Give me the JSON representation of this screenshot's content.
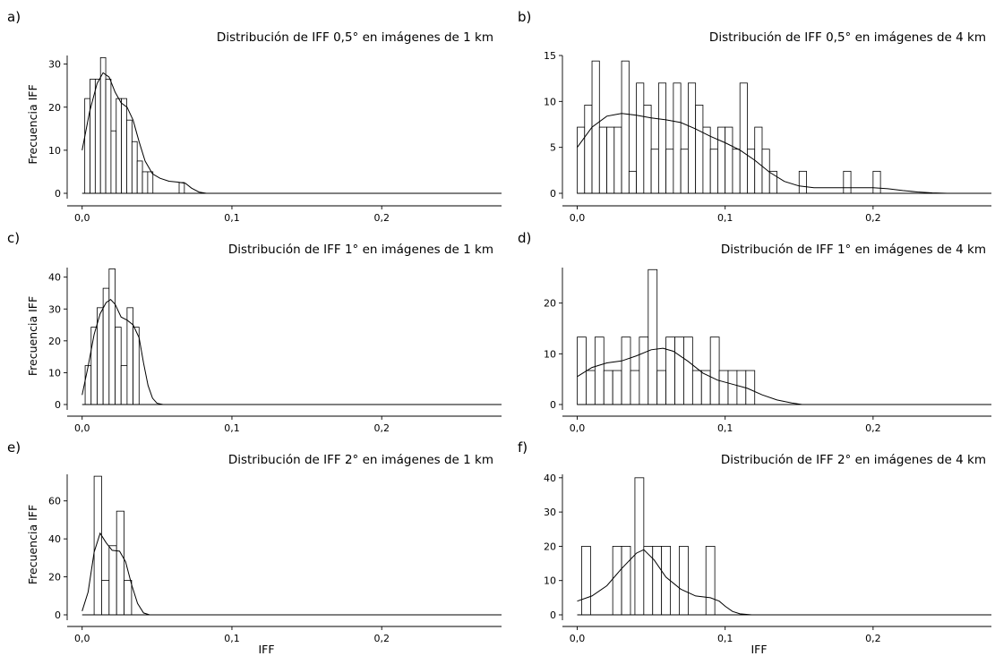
{
  "chart_data": [
    {
      "type": "bar",
      "panel": "a)",
      "title": "Distribución de IFF 0,5° en imágenes de 1 km",
      "xlabel": "",
      "ylabel": "Frecuencia IFF",
      "xlim": [
        -0.01,
        0.28
      ],
      "ylim": [
        0,
        32
      ],
      "xticks": [
        {
          "v": 0.0,
          "label": "0,0"
        },
        {
          "v": 0.1,
          "label": "0,1"
        },
        {
          "v": 0.2,
          "label": "0,2"
        }
      ],
      "yticks": [
        {
          "v": 0,
          "label": "0"
        },
        {
          "v": 10,
          "label": "10"
        },
        {
          "v": 20,
          "label": "20"
        },
        {
          "v": 30,
          "label": "30"
        }
      ],
      "bin_width": 0.0035,
      "bins": [
        {
          "x": 0.0035,
          "y": 22
        },
        {
          "x": 0.007,
          "y": 26.5
        },
        {
          "x": 0.0105,
          "y": 26.5
        },
        {
          "x": 0.014,
          "y": 31.5
        },
        {
          "x": 0.0175,
          "y": 26.5
        },
        {
          "x": 0.021,
          "y": 14.5
        },
        {
          "x": 0.0245,
          "y": 22
        },
        {
          "x": 0.028,
          "y": 22
        },
        {
          "x": 0.0315,
          "y": 17
        },
        {
          "x": 0.035,
          "y": 12
        },
        {
          "x": 0.0385,
          "y": 7.5
        },
        {
          "x": 0.042,
          "y": 5
        },
        {
          "x": 0.0455,
          "y": 5
        },
        {
          "x": 0.0665,
          "y": 2.5
        }
      ],
      "density": [
        [
          0.0,
          10
        ],
        [
          0.005,
          19
        ],
        [
          0.01,
          25.5
        ],
        [
          0.014,
          28
        ],
        [
          0.018,
          27
        ],
        [
          0.022,
          23.5
        ],
        [
          0.026,
          21
        ],
        [
          0.03,
          20
        ],
        [
          0.034,
          17
        ],
        [
          0.038,
          12
        ],
        [
          0.042,
          7.5
        ],
        [
          0.047,
          4.5
        ],
        [
          0.052,
          3.5
        ],
        [
          0.058,
          2.8
        ],
        [
          0.064,
          2.6
        ],
        [
          0.069,
          2.3
        ],
        [
          0.073,
          1.2
        ],
        [
          0.078,
          0.3
        ],
        [
          0.083,
          0
        ],
        [
          0.28,
          0
        ]
      ]
    },
    {
      "type": "bar",
      "panel": "b)",
      "title": "Distribución de IFF  0,5° en imágenes de 4 km",
      "xlabel": "",
      "ylabel": "",
      "xlim": [
        -0.01,
        0.28
      ],
      "ylim": [
        0,
        15
      ],
      "xticks": [
        {
          "v": 0.0,
          "label": "0,0"
        },
        {
          "v": 0.1,
          "label": "0,1"
        },
        {
          "v": 0.2,
          "label": "0,2"
        }
      ],
      "yticks": [
        {
          "v": 0,
          "label": "0"
        },
        {
          "v": 5,
          "label": "5"
        },
        {
          "v": 10,
          "label": "10"
        },
        {
          "v": 15,
          "label": "15"
        }
      ],
      "bin_width": 0.005,
      "bins": [
        {
          "x": 0.0025,
          "y": 7.2
        },
        {
          "x": 0.0075,
          "y": 9.6
        },
        {
          "x": 0.0125,
          "y": 14.4
        },
        {
          "x": 0.0175,
          "y": 7.2
        },
        {
          "x": 0.0225,
          "y": 7.2
        },
        {
          "x": 0.0275,
          "y": 7.2
        },
        {
          "x": 0.0325,
          "y": 14.4
        },
        {
          "x": 0.0375,
          "y": 2.4
        },
        {
          "x": 0.0425,
          "y": 12
        },
        {
          "x": 0.0475,
          "y": 9.6
        },
        {
          "x": 0.0525,
          "y": 4.8
        },
        {
          "x": 0.0575,
          "y": 12
        },
        {
          "x": 0.0625,
          "y": 4.8
        },
        {
          "x": 0.0675,
          "y": 12
        },
        {
          "x": 0.0725,
          "y": 4.8
        },
        {
          "x": 0.0775,
          "y": 12
        },
        {
          "x": 0.0825,
          "y": 9.6
        },
        {
          "x": 0.0875,
          "y": 7.2
        },
        {
          "x": 0.0925,
          "y": 4.8
        },
        {
          "x": 0.0975,
          "y": 7.2
        },
        {
          "x": 0.1025,
          "y": 7.2
        },
        {
          "x": 0.1075,
          "y": 4.8
        },
        {
          "x": 0.1125,
          "y": 12
        },
        {
          "x": 0.1175,
          "y": 4.8
        },
        {
          "x": 0.1225,
          "y": 7.2
        },
        {
          "x": 0.1275,
          "y": 4.8
        },
        {
          "x": 0.1325,
          "y": 2.4
        },
        {
          "x": 0.1525,
          "y": 2.4
        },
        {
          "x": 0.1825,
          "y": 2.4
        },
        {
          "x": 0.2025,
          "y": 2.4
        }
      ],
      "density": [
        [
          0.0,
          5
        ],
        [
          0.01,
          7.2
        ],
        [
          0.02,
          8.4
        ],
        [
          0.03,
          8.7
        ],
        [
          0.04,
          8.5
        ],
        [
          0.05,
          8.2
        ],
        [
          0.06,
          8
        ],
        [
          0.07,
          7.7
        ],
        [
          0.08,
          7
        ],
        [
          0.09,
          6.2
        ],
        [
          0.1,
          5.5
        ],
        [
          0.11,
          4.7
        ],
        [
          0.12,
          3.6
        ],
        [
          0.13,
          2.3
        ],
        [
          0.14,
          1.3
        ],
        [
          0.15,
          0.8
        ],
        [
          0.16,
          0.6
        ],
        [
          0.17,
          0.6
        ],
        [
          0.18,
          0.6
        ],
        [
          0.19,
          0.6
        ],
        [
          0.2,
          0.6
        ],
        [
          0.21,
          0.5
        ],
        [
          0.22,
          0.3
        ],
        [
          0.23,
          0.15
        ],
        [
          0.24,
          0.05
        ],
        [
          0.25,
          0
        ],
        [
          0.28,
          0
        ]
      ]
    },
    {
      "type": "bar",
      "panel": "c)",
      "title": "Distribución de IFF 1° en imágenes de 1 km",
      "xlabel": "",
      "ylabel": "Frecuencia IFF",
      "xlim": [
        -0.01,
        0.28
      ],
      "ylim": [
        0,
        43
      ],
      "xticks": [
        {
          "v": 0.0,
          "label": "0,0"
        },
        {
          "v": 0.1,
          "label": "0,1"
        },
        {
          "v": 0.2,
          "label": "0,2"
        }
      ],
      "yticks": [
        {
          "v": 0,
          "label": "0"
        },
        {
          "v": 10,
          "label": "10"
        },
        {
          "v": 20,
          "label": "20"
        },
        {
          "v": 30,
          "label": "30"
        },
        {
          "v": 40,
          "label": "40"
        }
      ],
      "bin_width": 0.004,
      "bins": [
        {
          "x": 0.004,
          "y": 12.2
        },
        {
          "x": 0.008,
          "y": 24.3
        },
        {
          "x": 0.012,
          "y": 30.4
        },
        {
          "x": 0.016,
          "y": 36.5
        },
        {
          "x": 0.02,
          "y": 42.6
        },
        {
          "x": 0.024,
          "y": 24.3
        },
        {
          "x": 0.028,
          "y": 12.2
        },
        {
          "x": 0.032,
          "y": 30.4
        },
        {
          "x": 0.036,
          "y": 24.3
        }
      ],
      "density": [
        [
          0.0,
          3
        ],
        [
          0.004,
          12
        ],
        [
          0.008,
          22
        ],
        [
          0.012,
          28.5
        ],
        [
          0.016,
          32
        ],
        [
          0.019,
          33
        ],
        [
          0.022,
          31.5
        ],
        [
          0.026,
          27.5
        ],
        [
          0.03,
          26.5
        ],
        [
          0.034,
          25
        ],
        [
          0.038,
          21
        ],
        [
          0.041,
          13
        ],
        [
          0.044,
          6
        ],
        [
          0.047,
          2
        ],
        [
          0.05,
          0.4
        ],
        [
          0.054,
          0
        ],
        [
          0.28,
          0
        ]
      ]
    },
    {
      "type": "bar",
      "panel": "d)",
      "title": "Distribución de IFF 1° en imágenes de 4 km",
      "xlabel": "",
      "ylabel": "",
      "xlim": [
        -0.01,
        0.28
      ],
      "ylim": [
        0,
        27
      ],
      "xticks": [
        {
          "v": 0.0,
          "label": "0,0"
        },
        {
          "v": 0.1,
          "label": "0,1"
        },
        {
          "v": 0.2,
          "label": "0,2"
        }
      ],
      "yticks": [
        {
          "v": 0,
          "label": "0"
        },
        {
          "v": 10,
          "label": "10"
        },
        {
          "v": 20,
          "label": "20"
        }
      ],
      "bin_width": 0.006,
      "bins": [
        {
          "x": 0.003,
          "y": 13.3
        },
        {
          "x": 0.009,
          "y": 6.7
        },
        {
          "x": 0.015,
          "y": 13.3
        },
        {
          "x": 0.021,
          "y": 6.7
        },
        {
          "x": 0.027,
          "y": 6.7
        },
        {
          "x": 0.033,
          "y": 13.3
        },
        {
          "x": 0.039,
          "y": 6.7
        },
        {
          "x": 0.045,
          "y": 13.3
        },
        {
          "x": 0.051,
          "y": 26.6
        },
        {
          "x": 0.057,
          "y": 6.7
        },
        {
          "x": 0.063,
          "y": 13.3
        },
        {
          "x": 0.069,
          "y": 13.3
        },
        {
          "x": 0.075,
          "y": 13.3
        },
        {
          "x": 0.081,
          "y": 6.7
        },
        {
          "x": 0.087,
          "y": 6.7
        },
        {
          "x": 0.093,
          "y": 13.3
        },
        {
          "x": 0.099,
          "y": 6.7
        },
        {
          "x": 0.105,
          "y": 6.7
        },
        {
          "x": 0.111,
          "y": 6.7
        },
        {
          "x": 0.117,
          "y": 6.7
        }
      ],
      "density": [
        [
          0.0,
          5.5
        ],
        [
          0.01,
          7.3
        ],
        [
          0.02,
          8.2
        ],
        [
          0.03,
          8.6
        ],
        [
          0.04,
          9.6
        ],
        [
          0.05,
          10.8
        ],
        [
          0.058,
          11.1
        ],
        [
          0.065,
          10.5
        ],
        [
          0.075,
          8.5
        ],
        [
          0.085,
          6.2
        ],
        [
          0.095,
          4.8
        ],
        [
          0.105,
          4
        ],
        [
          0.115,
          3.2
        ],
        [
          0.125,
          1.9
        ],
        [
          0.135,
          0.9
        ],
        [
          0.145,
          0.3
        ],
        [
          0.152,
          0
        ],
        [
          0.28,
          0
        ]
      ]
    },
    {
      "type": "bar",
      "panel": "e)",
      "title": "Distribución de IFF 2° en imágenes de 1 km",
      "xlabel": "IFF",
      "ylabel": "Frecuencia IFF",
      "xlim": [
        -0.01,
        0.28
      ],
      "ylim": [
        0,
        74
      ],
      "xticks": [
        {
          "v": 0.0,
          "label": "0,0"
        },
        {
          "v": 0.1,
          "label": "0,1"
        },
        {
          "v": 0.2,
          "label": "0,2"
        }
      ],
      "yticks": [
        {
          "v": 0,
          "label": "0"
        },
        {
          "v": 20,
          "label": "20"
        },
        {
          "v": 40,
          "label": "40"
        },
        {
          "v": 60,
          "label": "60"
        }
      ],
      "bin_width": 0.005,
      "bins": [
        {
          "x": 0.0105,
          "y": 73
        },
        {
          "x": 0.0155,
          "y": 18.2
        },
        {
          "x": 0.0205,
          "y": 36.4
        },
        {
          "x": 0.0255,
          "y": 54.6
        },
        {
          "x": 0.0305,
          "y": 18.2
        }
      ],
      "density": [
        [
          0.0,
          2
        ],
        [
          0.004,
          12
        ],
        [
          0.008,
          33
        ],
        [
          0.012,
          43
        ],
        [
          0.016,
          38
        ],
        [
          0.02,
          34
        ],
        [
          0.025,
          33.5
        ],
        [
          0.029,
          28
        ],
        [
          0.033,
          16
        ],
        [
          0.037,
          6
        ],
        [
          0.041,
          1
        ],
        [
          0.045,
          0
        ],
        [
          0.28,
          0
        ]
      ]
    },
    {
      "type": "bar",
      "panel": "f)",
      "title": "Distribución de IFF 2° en imágenes de 4 km",
      "xlabel": "IFF",
      "ylabel": "",
      "xlim": [
        -0.01,
        0.28
      ],
      "ylim": [
        0,
        41
      ],
      "xticks": [
        {
          "v": 0.0,
          "label": "0,0"
        },
        {
          "v": 0.1,
          "label": "0,1"
        },
        {
          "v": 0.2,
          "label": "0,2"
        }
      ],
      "yticks": [
        {
          "v": 0,
          "label": "0"
        },
        {
          "v": 10,
          "label": "10"
        },
        {
          "v": 20,
          "label": "20"
        },
        {
          "v": 30,
          "label": "30"
        },
        {
          "v": 40,
          "label": "40"
        }
      ],
      "bin_width": 0.006,
      "bins": [
        {
          "x": 0.006,
          "y": 20
        },
        {
          "x": 0.027,
          "y": 20
        },
        {
          "x": 0.033,
          "y": 20
        },
        {
          "x": 0.042,
          "y": 40
        },
        {
          "x": 0.048,
          "y": 20
        },
        {
          "x": 0.054,
          "y": 20
        },
        {
          "x": 0.06,
          "y": 20
        },
        {
          "x": 0.072,
          "y": 20
        },
        {
          "x": 0.09,
          "y": 20
        }
      ],
      "density": [
        [
          0.0,
          4
        ],
        [
          0.01,
          5.5
        ],
        [
          0.02,
          8.5
        ],
        [
          0.03,
          13.5
        ],
        [
          0.04,
          18
        ],
        [
          0.045,
          19
        ],
        [
          0.052,
          16
        ],
        [
          0.06,
          11
        ],
        [
          0.07,
          7.5
        ],
        [
          0.08,
          5.5
        ],
        [
          0.09,
          5
        ],
        [
          0.096,
          4
        ],
        [
          0.1,
          2.5
        ],
        [
          0.105,
          1
        ],
        [
          0.11,
          0.3
        ],
        [
          0.118,
          0
        ],
        [
          0.28,
          0
        ]
      ]
    }
  ]
}
